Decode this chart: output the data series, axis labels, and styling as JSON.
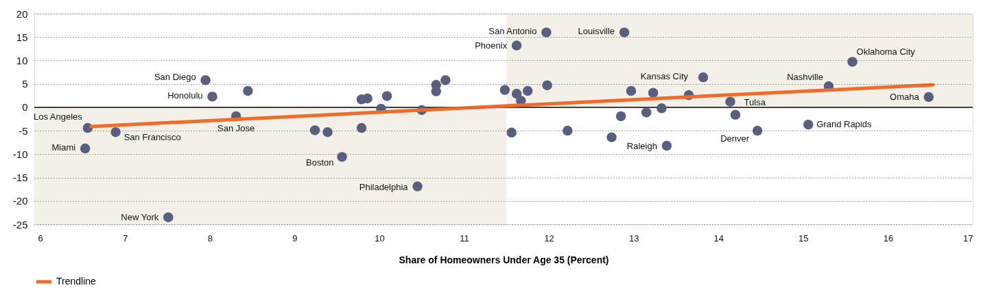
{
  "chart_data": {
    "type": "scatter",
    "xlabel": "Share of Homeowners Under Age 35 (Percent)",
    "xlim": [
      5.93,
      17
    ],
    "xticks": [
      6,
      7,
      8,
      9,
      10,
      11,
      12,
      13,
      14,
      15,
      16,
      17
    ],
    "ylim": [
      -25,
      20
    ],
    "yticks": [
      -25,
      -20,
      -15,
      -10,
      -5,
      0,
      5,
      10,
      15,
      20
    ],
    "grid": "y",
    "legend": "bottom left",
    "series": [
      {
        "marker": "circle",
        "color": "#5b5f7f",
        "x": [
          6.56,
          6.53,
          6.89,
          7.95,
          8.03,
          8.45,
          8.31,
          7.51,
          9.24,
          9.39,
          9.56,
          9.79,
          9.79,
          9.86,
          10.02,
          10.09,
          10.45,
          10.5,
          10.67,
          10.67,
          10.78,
          11.48,
          11.62,
          11.97,
          11.62,
          11.67,
          11.75,
          11.56,
          11.98,
          12.22,
          12.89,
          12.74,
          12.85,
          12.97,
          13.15,
          13.23,
          13.33,
          13.39,
          13.82,
          13.65,
          14.14,
          14.2,
          14.46,
          15.06,
          15.3,
          15.58,
          16.48
        ],
        "values": [
          -4.4,
          -8.8,
          -5.3,
          5.8,
          2.3,
          3.5,
          -1.9,
          -23.5,
          -4.9,
          -5.3,
          -10.6,
          -4.4,
          1.7,
          1.9,
          -0.3,
          2.4,
          -16.9,
          -0.6,
          4.8,
          3.4,
          5.8,
          3.7,
          13.2,
          16.0,
          2.9,
          1.4,
          3.5,
          -5.4,
          4.7,
          -5.0,
          16.0,
          -6.4,
          -1.9,
          3.5,
          -1.1,
          3.1,
          -0.2,
          -8.2,
          6.4,
          2.6,
          1.2,
          -1.6,
          -5.0,
          -3.7,
          4.5,
          9.7,
          2.2
        ]
      },
      {
        "type": "line",
        "marker": "none",
        "name": "Trendline",
        "color": "#f26b2a",
        "x": [
          6.6,
          16.53
        ],
        "values": [
          -4.1,
          4.8
        ]
      }
    ],
    "ref_lines": [
      {
        "axis": "y",
        "value": 0,
        "color": "#000000"
      }
    ],
    "bands": [
      {
        "axis": "x",
        "from": 5.93,
        "to": 11.5,
        "color": "#f3f0e7"
      },
      {
        "axis": "x",
        "from": 11.5,
        "to": 17,
        "color": "#f3f0e7"
      }
    ],
    "annotations": [
      {
        "text": "Los Angeles",
        "x": 6.56,
        "y": -4.4
      },
      {
        "text": "Miami",
        "x": 6.53,
        "y": -8.8
      },
      {
        "text": "San Francisco",
        "x": 6.89,
        "y": -5.3
      },
      {
        "text": "San Diego",
        "x": 7.95,
        "y": 5.8
      },
      {
        "text": "Honolulu",
        "x": 8.03,
        "y": 2.3
      },
      {
        "text": "San Jose",
        "x": 8.31,
        "y": -1.9
      },
      {
        "text": "New York",
        "x": 7.51,
        "y": -23.5
      },
      {
        "text": "Boston",
        "x": 9.56,
        "y": -10.6
      },
      {
        "text": "Philadelphia",
        "x": 10.45,
        "y": -16.9
      },
      {
        "text": "Phoenix",
        "x": 11.62,
        "y": 13.2
      },
      {
        "text": "San Antonio",
        "x": 11.97,
        "y": 16.0
      },
      {
        "text": "Louisville",
        "x": 12.89,
        "y": 16.0
      },
      {
        "text": "Raleigh",
        "x": 13.39,
        "y": -8.2
      },
      {
        "text": "Kansas City",
        "x": 13.82,
        "y": 6.4
      },
      {
        "text": "Tulsa",
        "x": 14.14,
        "y": 1.2
      },
      {
        "text": "Denver",
        "x": 14.46,
        "y": -5.0
      },
      {
        "text": "Grand Rapids",
        "x": 15.06,
        "y": -3.7
      },
      {
        "text": "Nashville",
        "x": 15.3,
        "y": 4.5
      },
      {
        "text": "Oklahoma City",
        "x": 15.58,
        "y": 9.7
      },
      {
        "text": "Omaha",
        "x": 16.48,
        "y": 2.2
      }
    ]
  }
}
